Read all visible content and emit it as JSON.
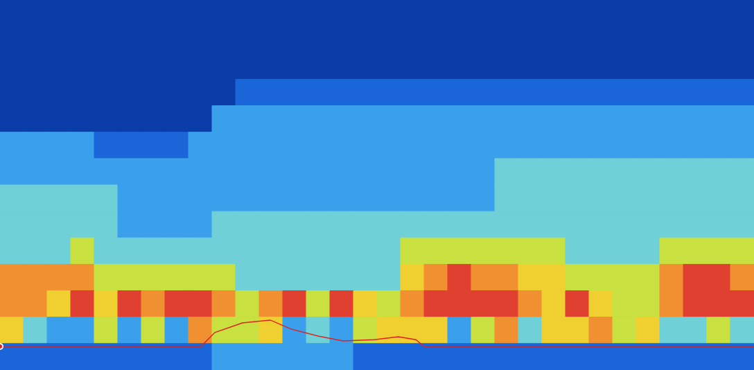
{
  "chart_data": {
    "type": "heatmap",
    "xlim": [
      0,
      32
    ],
    "ylim": [
      0,
      14
    ],
    "tick_labels": false,
    "grid": false,
    "color_range": [
      -80,
      -30
    ],
    "cells": [
      [
        -77,
        -77,
        -77,
        -77,
        -77,
        -77,
        -76,
        -76,
        -75,
        -75,
        -75,
        -74,
        -74,
        -74,
        -74,
        -74,
        -74,
        -74,
        -74,
        -74,
        -73,
        -73,
        -73,
        -73,
        -73,
        -73,
        -73,
        -73,
        -73,
        -73,
        -73,
        -73
      ],
      [
        -76,
        -76,
        -76,
        -76,
        -76,
        -76,
        -75,
        -75,
        -74,
        -74,
        -74,
        -73,
        -73,
        -73,
        -73,
        -73,
        -73,
        -73,
        -73,
        -73,
        -72,
        -72,
        -72,
        -72,
        -72,
        -72,
        -72,
        -72,
        -72,
        -72,
        -72,
        -72
      ],
      [
        -76,
        -76,
        -76,
        -76,
        -75,
        -75,
        -75,
        -74,
        -73,
        -73,
        -73,
        -73,
        -73,
        -72,
        -72,
        -72,
        -72,
        -72,
        -72,
        -72,
        -72,
        -72,
        -72,
        -72,
        -72,
        -72,
        -72,
        -72,
        -72,
        -72,
        -72,
        -72
      ],
      [
        -74,
        -74,
        -74,
        -74,
        -74,
        -74,
        -74,
        -74,
        -72,
        -72,
        -71,
        -71,
        -71,
        -71,
        -71,
        -71,
        -71,
        -71,
        -71,
        -71,
        -71,
        -71,
        -71,
        -71,
        -71,
        -71,
        -71,
        -71,
        -71,
        -71,
        -71,
        -71
      ],
      [
        -72,
        -72,
        -72,
        -72,
        -72,
        -72,
        -72,
        -72,
        -72,
        -66,
        -66,
        -66,
        -66,
        -66,
        -66,
        -66,
        -66,
        -66,
        -66,
        -66,
        -66,
        -66,
        -66,
        -66,
        -66,
        -66,
        -66,
        -66,
        -66,
        -66,
        -66,
        -66
      ],
      [
        -66,
        -66,
        -66,
        -66,
        -68,
        -68,
        -68,
        -68,
        -64,
        -64,
        -64,
        -64,
        -64,
        -64,
        -64,
        -64,
        -64,
        -64,
        -64,
        -64,
        -64,
        -64,
        -64,
        -64,
        -64,
        -64,
        -64,
        -64,
        -64,
        -64,
        -64,
        -64
      ],
      [
        -62,
        -62,
        -62,
        -62,
        -65,
        -65,
        -65,
        -65,
        -63,
        -63,
        -63,
        -63,
        -63,
        -63,
        -63,
        -63,
        -63,
        -63,
        -63,
        -63,
        -63,
        -60,
        -60,
        -60,
        -60,
        -60,
        -60,
        -60,
        -60,
        -60,
        -60,
        -60
      ],
      [
        -60,
        -60,
        -60,
        -60,
        -60,
        -63,
        -63,
        -63,
        -61,
        -61,
        -61,
        -61,
        -61,
        -61,
        -61,
        -61,
        -61,
        -61,
        -61,
        -61,
        -61,
        -58,
        -58,
        -58,
        -58,
        -58,
        -58,
        -58,
        -58,
        -58,
        -58,
        -58
      ],
      [
        -59,
        -59,
        -59,
        -59,
        -59,
        -61,
        -61,
        -61,
        -61,
        -60,
        -60,
        -60,
        -60,
        -60,
        -60,
        -60,
        -60,
        -60,
        -60,
        -60,
        -60,
        -57,
        -57,
        -57,
        -57,
        -57,
        -57,
        -57,
        -57,
        -57,
        -57,
        -57
      ],
      [
        -56,
        -56,
        -56,
        -50,
        -58,
        -58,
        -58,
        -58,
        -58,
        -58,
        -58,
        -58,
        -58,
        -58,
        -58,
        -58,
        -58,
        -50,
        -50,
        -50,
        -50,
        -50,
        -50,
        -50,
        -57,
        -57,
        -57,
        -57,
        -52,
        -52,
        -52,
        -52
      ],
      [
        -42,
        -42,
        -42,
        -42,
        -55,
        -55,
        -55,
        -55,
        -52,
        -52,
        -56,
        -56,
        -56,
        -56,
        -56,
        -56,
        -56,
        -45,
        -42,
        -38,
        -40,
        -40,
        -48,
        -45,
        -54,
        -54,
        -54,
        -54,
        -40,
        -38,
        -36,
        -40
      ],
      [
        -40,
        -42,
        -44,
        -38,
        -45,
        -38,
        -40,
        -38,
        -36,
        -40,
        -55,
        -42,
        -38,
        -55,
        -36,
        -45,
        -52,
        -40,
        -38,
        -36,
        -38,
        -36,
        -40,
        -45,
        -38,
        -48,
        -55,
        -50,
        -40,
        -38,
        -36,
        -38
      ],
      [
        -45,
        -60,
        -62,
        -66,
        -50,
        -66,
        -52,
        -66,
        -42,
        -50,
        -52,
        -48,
        -66,
        -58,
        -66,
        -52,
        -45,
        -46,
        -48,
        -62,
        -55,
        -42,
        -60,
        -46,
        -48,
        -42,
        -50,
        -46,
        -58,
        -60,
        -52,
        -56
      ],
      [
        -70,
        -70,
        -70,
        -70,
        -70,
        -70,
        -70,
        -70,
        -68,
        -66,
        -66,
        -66,
        -66,
        -66,
        -66,
        -68,
        -70,
        -70,
        -70,
        -70,
        -70,
        -70,
        -70,
        -70,
        -70,
        -70,
        -70,
        -70,
        -70,
        -70,
        -70,
        -70
      ]
    ],
    "line": {
      "color": "#e02020",
      "x": [
        0,
        8.53,
        9.12,
        10.29,
        11.47,
        12.35,
        13.53,
        14.56,
        15.88,
        16.91,
        17.65,
        18.0,
        32
      ],
      "y": [
        13.11,
        13.11,
        12.58,
        12.22,
        12.11,
        12.45,
        12.72,
        12.9,
        12.85,
        12.74,
        12.85,
        13.11,
        13.11
      ]
    }
  }
}
